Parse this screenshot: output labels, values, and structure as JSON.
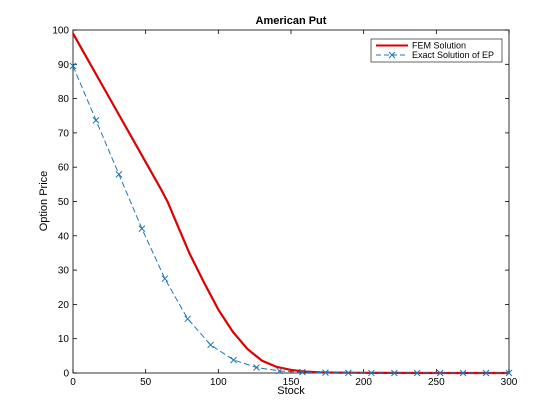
{
  "chart_data": {
    "type": "line",
    "title": "American Put",
    "xlabel": "Stock",
    "ylabel": "Option Price",
    "xlim": [
      0,
      300
    ],
    "ylim": [
      0,
      100
    ],
    "xticks": [
      0,
      50,
      100,
      150,
      200,
      250,
      300
    ],
    "yticks": [
      0,
      10,
      20,
      30,
      40,
      50,
      60,
      70,
      80,
      90,
      100
    ],
    "grid": false,
    "legend_position": "top-right",
    "series": [
      {
        "name": "FEM Solution",
        "color": "#dd0000",
        "style": "solid",
        "marker": "none",
        "x": [
          0,
          10,
          20,
          30,
          40,
          50,
          60,
          65,
          70,
          80,
          90,
          100,
          110,
          120,
          130,
          140,
          150,
          160,
          170,
          180,
          200,
          250,
          300
        ],
        "y": [
          99,
          91.5,
          84,
          76.5,
          69,
          61.5,
          54,
          50,
          45,
          35,
          26.5,
          18.5,
          12,
          7,
          3.6,
          1.8,
          0.9,
          0.4,
          0.2,
          0.1,
          0.05,
          0,
          0
        ]
      },
      {
        "name": "Exact Solution of EP",
        "color": "#1f77b4",
        "style": "dashed",
        "marker": "x",
        "x": [
          0,
          15.8,
          31.6,
          47.4,
          63.2,
          78.9,
          94.7,
          110.5,
          126.3,
          142.1,
          157.9,
          173.7,
          189.5,
          205.3,
          221.1,
          236.8,
          252.6,
          268.4,
          284.2,
          300
        ],
        "y": [
          89.5,
          73.7,
          57.9,
          42.1,
          27.5,
          15.8,
          8.2,
          3.8,
          1.6,
          0.6,
          0.25,
          0.1,
          0.04,
          0.02,
          0.01,
          0,
          0,
          0,
          0,
          0
        ]
      }
    ]
  }
}
